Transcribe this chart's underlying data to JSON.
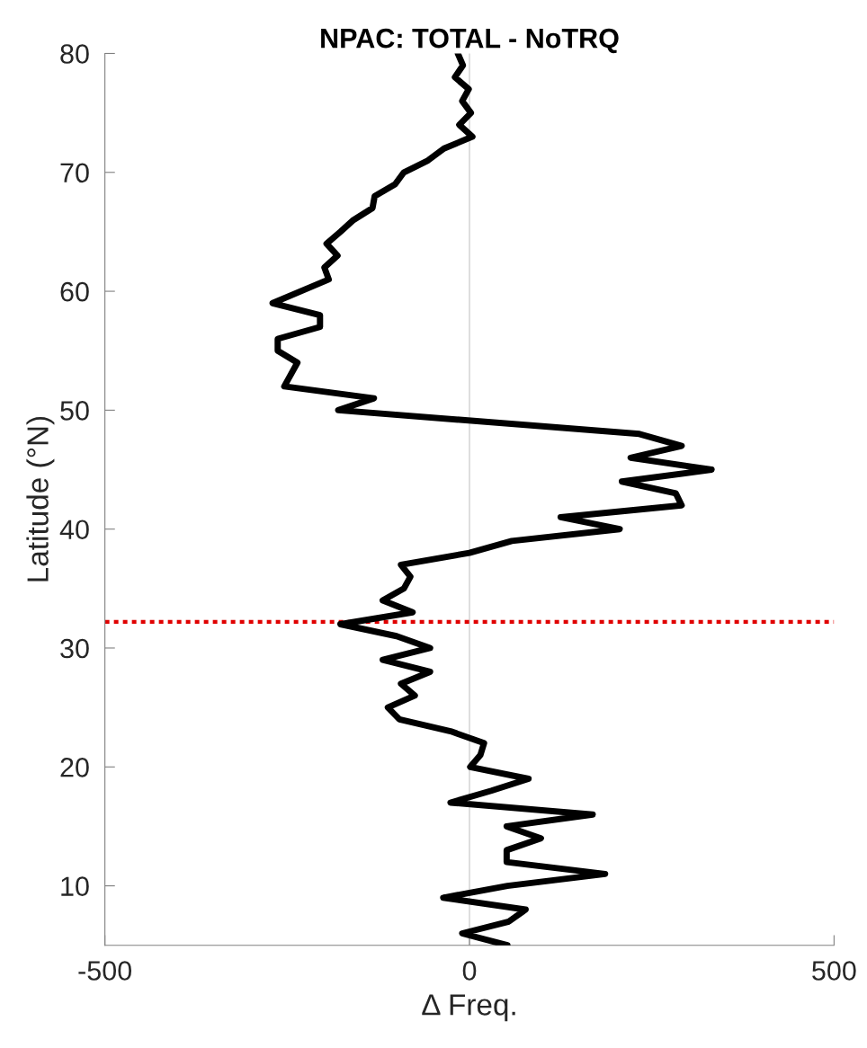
{
  "chart_data": {
    "type": "line",
    "title": "NPAC: TOTAL - NoTRQ",
    "xlabel": "Δ Freq.",
    "ylabel": "Latitude (°N)",
    "series": [
      {
        "color": "#000000",
        "x": [
          -16,
          -9,
          -20,
          -1,
          -10,
          2,
          -14,
          4,
          -35,
          -57,
          -90,
          -102,
          -130,
          -133,
          -159,
          -177,
          -196,
          -181,
          -199,
          -193,
          -270,
          -205,
          -205,
          -263,
          -263,
          -236,
          -254,
          -131,
          -180,
          233,
          291,
          221,
          332,
          209,
          283,
          291,
          125,
          206,
          58,
          0,
          -94,
          -81,
          -90,
          -119,
          -78,
          -177,
          -100,
          -54,
          -119,
          -54,
          -94,
          -75,
          -112,
          -96,
          -26,
          20,
          15,
          1,
          81,
          30,
          -26,
          169,
          51,
          98,
          51,
          51,
          186,
          52,
          -36,
          77,
          54,
          -10,
          52
        ],
        "values": [
          80,
          79,
          78,
          77,
          76,
          75,
          74,
          73,
          72,
          71,
          70,
          69,
          68,
          67,
          66,
          65,
          64,
          63,
          62,
          61,
          59,
          58,
          57,
          56,
          55,
          54,
          52,
          51,
          50,
          48,
          47,
          46,
          45,
          44,
          43,
          42,
          41,
          40,
          39,
          38,
          37,
          36,
          35,
          34,
          33,
          32,
          31,
          30,
          29,
          28,
          27,
          26,
          25,
          24,
          23,
          22,
          21,
          20,
          19,
          18,
          17,
          16,
          15,
          14,
          13,
          12,
          11,
          10,
          9,
          8,
          7,
          6,
          5
        ]
      }
    ],
    "xlim": [
      -500,
      500
    ],
    "xticks": [
      -500,
      0,
      500
    ],
    "ylim": [
      5,
      80
    ],
    "yticks": [
      10,
      20,
      30,
      40,
      50,
      60,
      70,
      80
    ],
    "ref_lines": [
      {
        "axis": "x",
        "value": 0,
        "color": "#d0d0d0",
        "line_style": "solid"
      },
      {
        "axis": "y",
        "value": 32.2,
        "color": "#e00000",
        "line_style": "dotted"
      }
    ],
    "grid": false,
    "legend": false
  }
}
